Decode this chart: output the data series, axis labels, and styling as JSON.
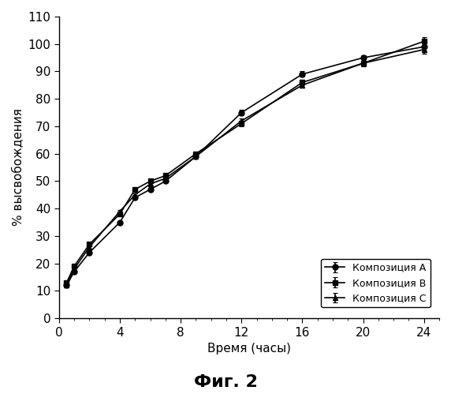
{
  "time": [
    0.5,
    1,
    2,
    4,
    5,
    6,
    7,
    9,
    12,
    16,
    20,
    24
  ],
  "composition_A": [
    12,
    17,
    24,
    35,
    44,
    47,
    50,
    59,
    75,
    89,
    95,
    99
  ],
  "composition_B": [
    13,
    19,
    27,
    38,
    47,
    50,
    52,
    60,
    71,
    86,
    93,
    101
  ],
  "composition_C": [
    12,
    18,
    26,
    39,
    45,
    49,
    51,
    59,
    72,
    85,
    93,
    98
  ],
  "errors_A": [
    0.5,
    0.5,
    0.5,
    0.5,
    0.5,
    0.5,
    0.5,
    0.5,
    1.0,
    1.0,
    1.0,
    1.5
  ],
  "errors_B": [
    0.5,
    0.5,
    0.5,
    0.5,
    0.5,
    0.5,
    0.5,
    0.5,
    1.0,
    1.0,
    1.0,
    1.5
  ],
  "errors_C": [
    0.5,
    0.5,
    0.5,
    0.5,
    0.5,
    0.5,
    0.5,
    0.5,
    1.0,
    1.0,
    1.0,
    1.5
  ],
  "ylabel": "% высвобождения",
  "xlabel": "Время (часы)",
  "caption": "Фиг. 2",
  "legend_A": "Композиция А",
  "legend_B": "Композиция В",
  "legend_C": "Композиция С",
  "ylim": [
    0,
    110
  ],
  "xlim": [
    0,
    25
  ],
  "yticks": [
    0,
    10,
    20,
    30,
    40,
    50,
    60,
    70,
    80,
    90,
    100,
    110
  ],
  "xticks": [
    0,
    4,
    8,
    12,
    16,
    20,
    24
  ],
  "line_color": "#000000",
  "background_color": "#ffffff",
  "tick_label_fontsize": 11,
  "axis_label_fontsize": 11,
  "caption_fontsize": 16,
  "legend_fontsize": 9,
  "marker_size": 5,
  "linewidth": 1.2,
  "capsize": 2
}
